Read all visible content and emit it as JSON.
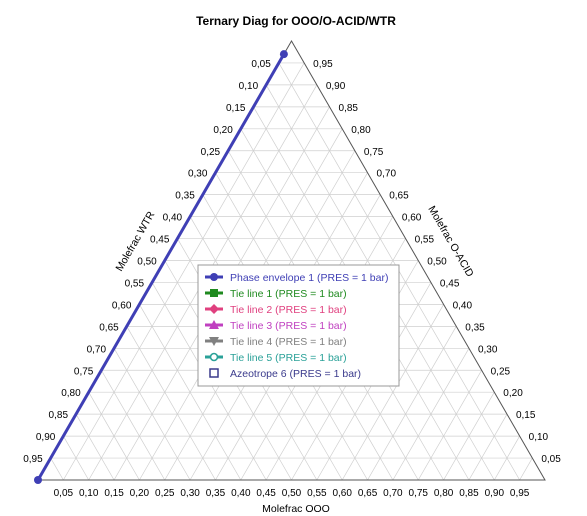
{
  "chart_data": {
    "type": "ternary",
    "title": "Ternary Diag for OOO/O-ACID/WTR",
    "components": [
      "OOO",
      "O-ACID",
      "WTR"
    ],
    "axes": {
      "bottom": {
        "label": "Molefrac OOO",
        "ticks": [
          "0,05",
          "0,10",
          "0,15",
          "0,20",
          "0,25",
          "0,30",
          "0,35",
          "0,40",
          "0,45",
          "0,50",
          "0,55",
          "0,60",
          "0,65",
          "0,70",
          "0,75",
          "0,80",
          "0,85",
          "0,90",
          "0,95"
        ]
      },
      "right": {
        "label": "Molefrac O-ACID",
        "ticks": [
          "0,95",
          "0,90",
          "0,85",
          "0,80",
          "0,75",
          "0,70",
          "0,65",
          "0,60",
          "0,55",
          "0,50",
          "0,45",
          "0,40",
          "0,35",
          "0,30",
          "0,25",
          "0,20",
          "0,15",
          "0,10",
          "0,05"
        ]
      },
      "left": {
        "label": "Molefrac WTR",
        "ticks": [
          "0,05",
          "0,10",
          "0,15",
          "0,20",
          "0,25",
          "0,30",
          "0,35",
          "0,40",
          "0,45",
          "0,50",
          "0,55",
          "0,60",
          "0,65",
          "0,70",
          "0,75",
          "0,80",
          "0,85",
          "0,90",
          "0,95"
        ]
      }
    },
    "grid": true,
    "grid_step": 0.05,
    "legend_position": "center",
    "series": [
      {
        "name": "Phase envelope 1 (PRES = 1  bar)",
        "color": "#3f3fb5",
        "marker": "circle",
        "points": [
          {
            "OOO": 0.0,
            "O-ACID": 0.97,
            "WTR": 0.03
          },
          {
            "OOO": 0.0,
            "O-ACID": 0.0,
            "WTR": 1.0
          }
        ]
      },
      {
        "name": "Tie line 1 (PRES = 1  bar)",
        "color": "#1f8a1f",
        "marker": "square",
        "points": []
      },
      {
        "name": "Tie line 2 (PRES = 1  bar)",
        "color": "#e0407f",
        "marker": "diamond",
        "points": []
      },
      {
        "name": "Tie line 3 (PRES = 1  bar)",
        "color": "#c040c0",
        "marker": "triangle",
        "points": []
      },
      {
        "name": "Tie line 4 (PRES = 1  bar)",
        "color": "#808080",
        "marker": "triangle-down",
        "points": []
      },
      {
        "name": "Tie line 5 (PRES = 1  bar)",
        "color": "#2aa198",
        "marker": "open-circle",
        "points": []
      },
      {
        "name": "Azeotrope 6 (PRES = 1  bar)",
        "color": "#3a3a8c",
        "marker": "open-square",
        "points": []
      }
    ]
  }
}
